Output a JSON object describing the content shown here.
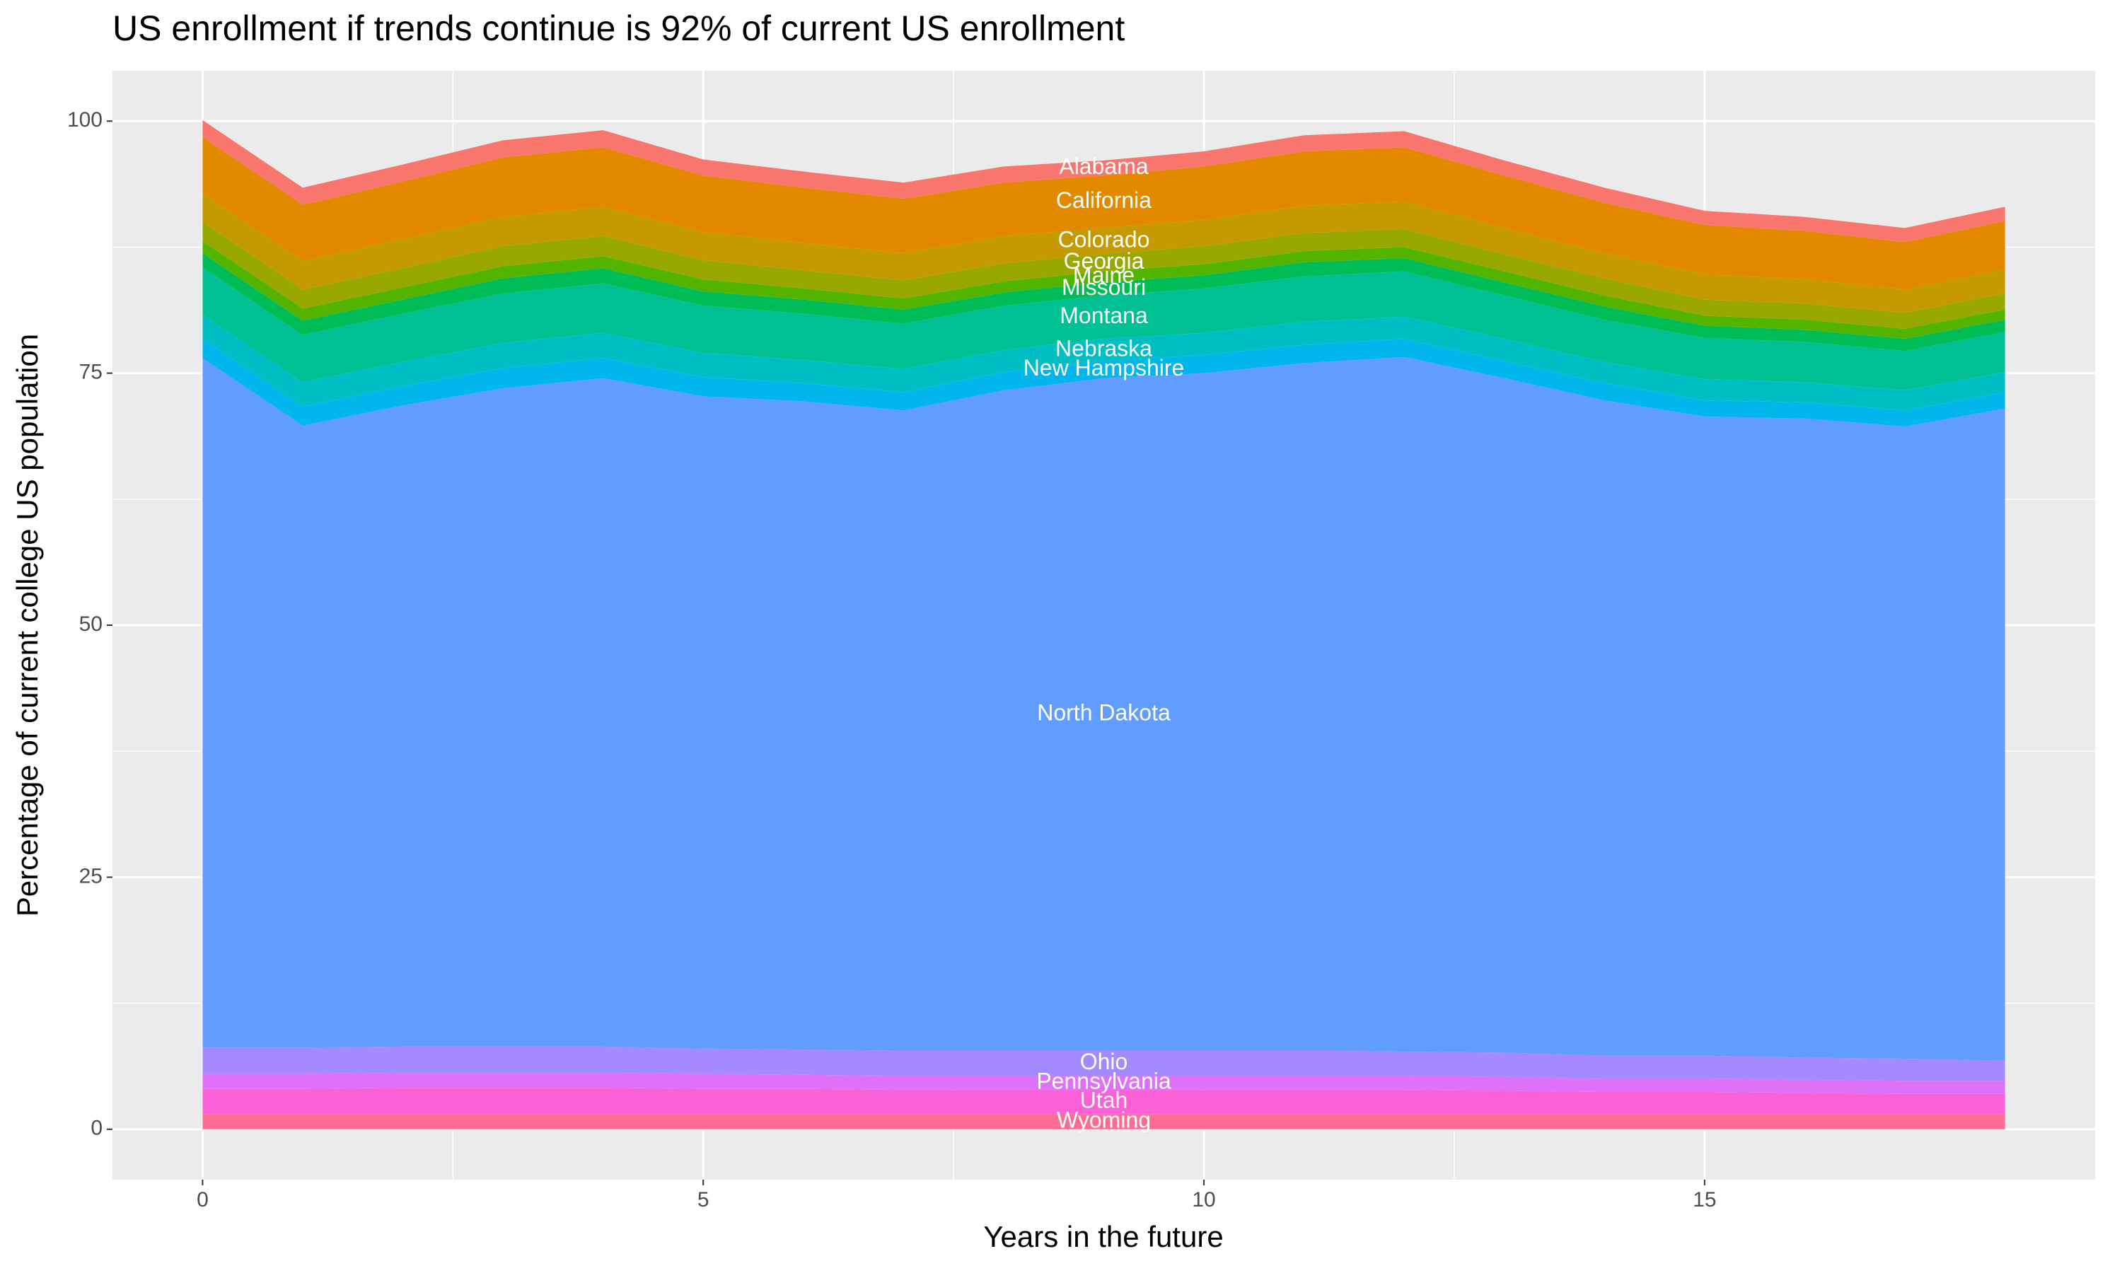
{
  "chart_data": {
    "type": "stacked-area",
    "title": "US enrollment if trends continue is 92% of current US enrollment",
    "x_label": "Years in the future",
    "y_label": "Percentage of current college US population",
    "x": [
      0,
      1,
      2,
      3,
      4,
      5,
      6,
      7,
      8,
      9,
      10,
      11,
      12,
      13,
      14,
      15,
      16,
      17,
      18
    ],
    "xlim": [
      -0.9,
      18.9
    ],
    "xticks": [
      0,
      5,
      10,
      15
    ],
    "ylim": [
      -5,
      105
    ],
    "yticks": [
      0,
      25,
      50,
      75,
      100
    ],
    "grid": true,
    "series": [
      {
        "name": "Alabama",
        "color": "#F8766D",
        "values": [
          1.7,
          1.7,
          1.7,
          1.7,
          1.7,
          1.6,
          1.6,
          1.6,
          1.6,
          1.5,
          1.5,
          1.6,
          1.6,
          1.5,
          1.5,
          1.4,
          1.4,
          1.4,
          1.4
        ]
      },
      {
        "name": "California",
        "color": "#E38900",
        "values": [
          5.6,
          5.6,
          5.7,
          5.9,
          5.9,
          5.6,
          5.5,
          5.4,
          5.3,
          5.2,
          5.3,
          5.4,
          5.4,
          5.2,
          5.0,
          4.9,
          4.8,
          4.7,
          4.8
        ]
      },
      {
        "name": "Colorado",
        "color": "#C49A00",
        "values": [
          2.8,
          2.8,
          2.9,
          2.9,
          2.9,
          2.8,
          2.7,
          2.7,
          2.7,
          2.6,
          2.6,
          2.7,
          2.7,
          2.6,
          2.5,
          2.5,
          2.4,
          2.3,
          2.4
        ]
      },
      {
        "name": "Georgia",
        "color": "#99A800",
        "values": [
          1.9,
          1.9,
          1.9,
          2.0,
          2.0,
          1.9,
          1.8,
          1.8,
          1.8,
          1.7,
          1.8,
          1.8,
          1.8,
          1.7,
          1.7,
          1.6,
          1.6,
          1.6,
          1.6
        ]
      },
      {
        "name": "Maine",
        "color": "#53B400",
        "values": [
          1.2,
          1.2,
          1.2,
          1.2,
          1.2,
          1.2,
          1.1,
          1.1,
          1.1,
          1.1,
          1.1,
          1.1,
          1.1,
          1.1,
          1.1,
          1.0,
          1.0,
          1.0,
          1.0
        ]
      },
      {
        "name": "Missouri",
        "color": "#00BC56",
        "values": [
          1.4,
          1.4,
          1.4,
          1.5,
          1.5,
          1.4,
          1.4,
          1.4,
          1.3,
          1.3,
          1.3,
          1.4,
          1.3,
          1.3,
          1.3,
          1.2,
          1.2,
          1.2,
          1.2
        ]
      },
      {
        "name": "Montana",
        "color": "#00C094",
        "values": [
          4.7,
          4.7,
          4.8,
          4.9,
          4.9,
          4.7,
          4.6,
          4.5,
          4.4,
          4.3,
          4.4,
          4.5,
          4.5,
          4.3,
          4.2,
          4.1,
          4.0,
          3.9,
          4.0
        ]
      },
      {
        "name": "Nebraska",
        "color": "#00BFC4",
        "values": [
          2.4,
          2.4,
          2.4,
          2.5,
          2.5,
          2.4,
          2.3,
          2.3,
          2.2,
          2.2,
          2.2,
          2.3,
          2.2,
          2.2,
          2.1,
          2.1,
          2.0,
          2.0,
          2.0
        ]
      },
      {
        "name": "New Hampshire",
        "color": "#00B6EB",
        "values": [
          1.9,
          1.9,
          1.9,
          2.0,
          2.0,
          1.9,
          1.8,
          1.8,
          1.8,
          1.7,
          1.8,
          1.8,
          1.8,
          1.7,
          1.7,
          1.6,
          1.6,
          1.6,
          1.6
        ]
      },
      {
        "name": "North Dakota",
        "color": "#619CFF",
        "values": [
          68.4,
          61.7,
          63.6,
          65.3,
          66.3,
          64.7,
          64.3,
          63.5,
          65.5,
          66.7,
          67.2,
          68.2,
          68.9,
          66.9,
          65.0,
          63.4,
          63.4,
          62.7,
          64.7
        ]
      },
      {
        "name": "Ohio",
        "color": "#A58AFF",
        "values": [
          2.6,
          2.6,
          2.6,
          2.6,
          2.6,
          2.5,
          2.5,
          2.5,
          2.5,
          2.5,
          2.5,
          2.5,
          2.4,
          2.4,
          2.3,
          2.3,
          2.2,
          2.2,
          2.0
        ]
      },
      {
        "name": "Pennsylvania",
        "color": "#DF70F8",
        "values": [
          1.5,
          1.5,
          1.5,
          1.5,
          1.5,
          1.5,
          1.4,
          1.4,
          1.4,
          1.4,
          1.4,
          1.4,
          1.4,
          1.4,
          1.3,
          1.3,
          1.3,
          1.3,
          1.3
        ]
      },
      {
        "name": "Utah",
        "color": "#FB61D7",
        "values": [
          2.5,
          2.5,
          2.6,
          2.6,
          2.6,
          2.5,
          2.5,
          2.4,
          2.4,
          2.4,
          2.4,
          2.4,
          2.4,
          2.3,
          2.2,
          2.2,
          2.1,
          2.0,
          2.0
        ]
      },
      {
        "name": "Wyoming",
        "color": "#FF6C91",
        "values": [
          1.5,
          1.5,
          1.5,
          1.5,
          1.5,
          1.5,
          1.5,
          1.5,
          1.5,
          1.5,
          1.5,
          1.5,
          1.5,
          1.5,
          1.5,
          1.5,
          1.5,
          1.5,
          1.5
        ]
      }
    ]
  }
}
